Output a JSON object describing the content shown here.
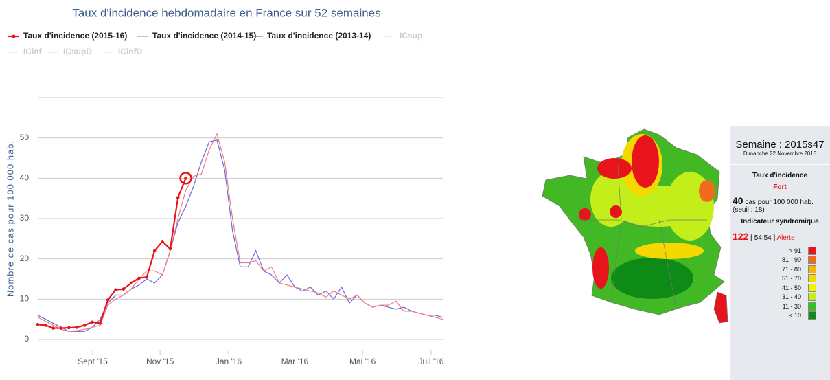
{
  "chart_data": {
    "type": "line",
    "title": "Taux d'incidence hebdomadaire en France sur 52 semaines",
    "y_label": "Nombre de cas pour 100 000 hab.",
    "x": [
      0,
      1,
      2,
      3,
      4,
      5,
      6,
      7,
      8,
      9,
      10,
      11,
      12,
      13,
      14,
      15,
      16,
      17,
      18,
      19,
      20,
      21,
      22,
      23,
      24,
      25,
      26,
      27,
      28,
      29,
      30,
      31,
      32,
      33,
      34,
      35,
      36,
      37,
      38,
      39,
      40,
      41,
      42,
      43,
      44,
      45,
      46,
      47,
      48,
      49,
      50,
      51,
      52
    ],
    "xlim": [
      0,
      52
    ],
    "xticks": [
      {
        "value": 7.05,
        "label": "Sept '15"
      },
      {
        "value": 15.7,
        "label": "Nov '15"
      },
      {
        "value": 24.5,
        "label": "Jan '16"
      },
      {
        "value": 33,
        "label": "Mar '16"
      },
      {
        "value": 41.7,
        "label": "Mai '16"
      },
      {
        "value": 50.5,
        "label": "Juil '16"
      }
    ],
    "ylim": [
      0,
      60
    ],
    "yticks": [
      0,
      10,
      20,
      30,
      40,
      50
    ],
    "grid": true,
    "series": [
      {
        "name": "Taux d'incidence (2015-16)",
        "color": "#e8141b",
        "markers": true,
        "values": [
          3.7,
          3.5,
          2.8,
          2.8,
          2.9,
          3,
          3.5,
          4.3,
          4,
          9.8,
          12.3,
          12.5,
          14,
          15.2,
          15.5,
          22,
          24.3,
          22.5,
          35.2,
          40,
          null,
          null,
          null,
          null,
          null,
          null,
          null,
          null,
          null,
          null,
          null,
          null,
          null,
          null,
          null,
          null,
          null,
          null,
          null,
          null,
          null,
          null,
          null,
          null,
          null,
          null,
          null,
          null,
          null,
          null,
          null,
          null,
          null
        ]
      },
      {
        "name": "Taux d'incidence (2014-15)",
        "color": "#f07a80",
        "markers": false,
        "values": [
          5.5,
          4.5,
          3.5,
          2.5,
          2,
          2.2,
          2.5,
          3,
          3.5,
          8.5,
          10,
          11,
          12.5,
          15,
          17,
          17,
          16,
          22,
          30,
          37,
          40.5,
          41,
          47,
          51,
          44,
          30,
          19,
          19,
          19.5,
          17,
          18,
          14,
          13.5,
          13,
          12.5,
          12,
          11.5,
          10.5,
          12,
          11,
          10,
          11,
          9,
          8,
          8.5,
          8.5,
          9.5,
          7,
          7,
          6.5,
          6,
          5.5,
          5
        ]
      },
      {
        "name": "Taux d'incidence (2013-14)",
        "color": "#6a66e0",
        "markers": false,
        "values": [
          6,
          5,
          4,
          3,
          2,
          2,
          2,
          3,
          5,
          9,
          11,
          11,
          12.5,
          13.5,
          15,
          14,
          16,
          22,
          29,
          33,
          38,
          44,
          49,
          49.5,
          42,
          27,
          18,
          18,
          22,
          17,
          16,
          14,
          16,
          13,
          12,
          13,
          11,
          12,
          10,
          13,
          9,
          11,
          9,
          8,
          8.5,
          8,
          7.5,
          8,
          7,
          6.5,
          6,
          6,
          5.5
        ]
      }
    ],
    "hidden_series": [
      "ICsup",
      "ICinf",
      "ICsupD",
      "ICinfD"
    ]
  },
  "panel": {
    "week": "Semaine : 2015s47",
    "date": "Dimanche 22 Novembre 2015",
    "incidence_title": "Taux d'incidence",
    "level": "Fort",
    "rate": "40",
    "rate_unit": "cas pour 100 000 hab.",
    "threshold": "(seuil : 18)",
    "syndromic_title": "Indicateur syndromique",
    "syndromic_value": "122",
    "syndromic_range": "[ 54;54 ]",
    "syndromic_status": "Alerte",
    "legend": [
      {
        "label": "> 91",
        "color": "#e8141b"
      },
      {
        "label": "81 - 90",
        "color": "#f26a1b"
      },
      {
        "label": "71 - 80",
        "color": "#f5b400"
      },
      {
        "label": "51 - 70",
        "color": "#f5d800"
      },
      {
        "label": "41 - 50",
        "color": "#f3f300"
      },
      {
        "label": "31 - 40",
        "color": "#c3ee1a"
      },
      {
        "label": "11 - 30",
        "color": "#33c21d"
      },
      {
        "label": "< 10",
        "color": "#0e8a17"
      }
    ]
  }
}
